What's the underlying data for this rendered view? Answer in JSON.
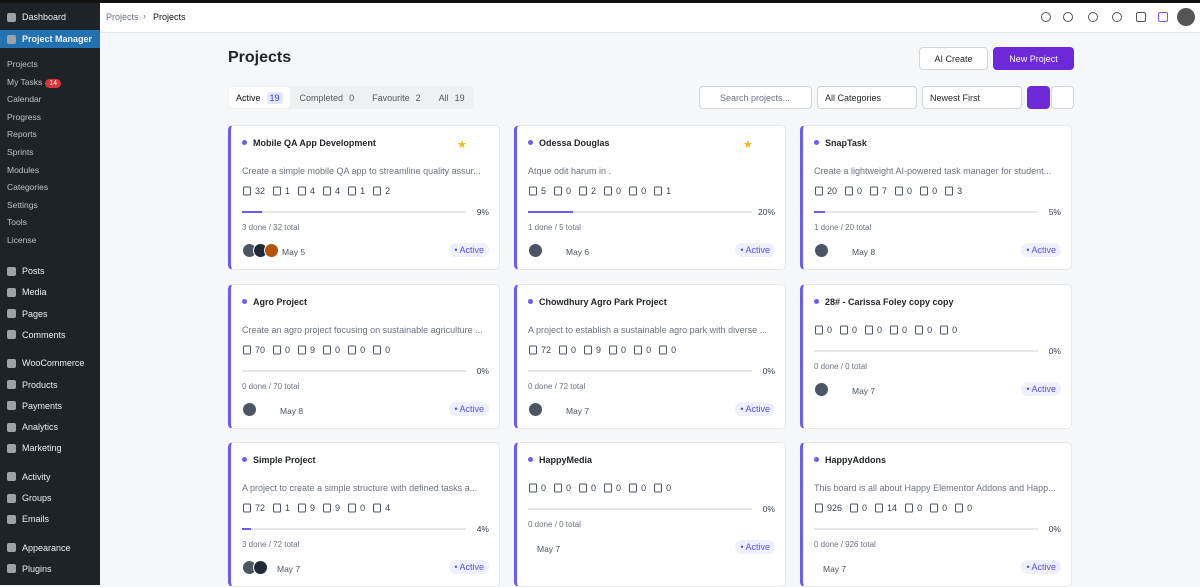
{
  "sidebar": {
    "top": [
      "Dashboard",
      "Project Manager"
    ],
    "submenu": [
      {
        "label": "Projects"
      },
      {
        "label": "My Tasks",
        "badge": "14"
      },
      {
        "label": "Calendar"
      },
      {
        "label": "Progress"
      },
      {
        "label": "Reports"
      },
      {
        "label": "Sprints"
      },
      {
        "label": "Modules"
      },
      {
        "label": "Categories"
      },
      {
        "label": "Settings"
      },
      {
        "label": "Tools"
      },
      {
        "label": "License"
      }
    ],
    "groups": [
      [
        "Posts",
        "Media",
        "Pages",
        "Comments"
      ],
      [
        "WooCommerce",
        "Products",
        "Payments",
        "Analytics",
        "Marketing"
      ],
      [
        "Activity",
        "Groups",
        "Emails"
      ],
      [
        "Appearance",
        "Plugins"
      ]
    ]
  },
  "breadcrumb": [
    "Projects",
    "Projects"
  ],
  "header": {
    "title": "Projects",
    "ai_button": "AI Create",
    "new_button": "New Project"
  },
  "tabs": [
    {
      "label": "Active",
      "count": "19"
    },
    {
      "label": "Completed",
      "count": "0"
    },
    {
      "label": "Favourite",
      "count": "2"
    },
    {
      "label": "All",
      "count": "19"
    }
  ],
  "filters": {
    "search_placeholder": "Search projects...",
    "category": "All Categories",
    "sort": "Newest First"
  },
  "cards": [
    {
      "title": "Mobile QA App Development",
      "starred": true,
      "description": "Create a simple mobile QA app to streamline quality assur...",
      "stats": [
        "32",
        "1",
        "4",
        "4",
        "1",
        "2"
      ],
      "progress": "9%",
      "summary": "3 done / 32 total",
      "date": "May 5",
      "status": "Active"
    },
    {
      "title": "Odessa Douglas",
      "starred": true,
      "description": "Atque odit harum in .",
      "stats": [
        "5",
        "0",
        "2",
        "0",
        "0",
        "1"
      ],
      "progress": "20%",
      "summary": "1 done / 5 total",
      "date": "May 6",
      "status": "Active"
    },
    {
      "title": "SnapTask",
      "starred": false,
      "description": "Create a lightweight AI-powered task manager for student...",
      "stats": [
        "20",
        "0",
        "7",
        "0",
        "0",
        "3"
      ],
      "progress": "5%",
      "summary": "1 done / 20 total",
      "date": "May 8",
      "status": "Active"
    },
    {
      "title": "Agro Project",
      "starred": false,
      "description": "Create an agro project focusing on sustainable agriculture ...",
      "stats": [
        "70",
        "0",
        "9",
        "0",
        "0",
        "0"
      ],
      "progress": "0%",
      "summary": "0 done / 70 total",
      "date": "May 8",
      "status": "Active"
    },
    {
      "title": "Chowdhury Agro Park Project",
      "starred": false,
      "description": "A project to establish a sustainable agro park with diverse ...",
      "stats": [
        "72",
        "0",
        "9",
        "0",
        "0",
        "0"
      ],
      "progress": "0%",
      "summary": "0 done / 72 total",
      "date": "May 7",
      "status": "Active"
    },
    {
      "title": "28# - Carissa Foley copy copy",
      "starred": false,
      "stats": [
        "0",
        "0",
        "0",
        "0",
        "0",
        "0"
      ],
      "progress": "0%",
      "summary": "0 done / 0 total",
      "date": "May 7",
      "status": "Active"
    },
    {
      "title": "Simple Project",
      "starred": false,
      "description": "A project to create a simple structure with defined tasks a...",
      "stats": [
        "72",
        "1",
        "9",
        "9",
        "0",
        "4"
      ],
      "progress": "4%",
      "summary": "3 done / 72 total",
      "date": "May 7",
      "status": "Active"
    },
    {
      "title": "HappyMedia",
      "starred": false,
      "stats": [
        "0",
        "0",
        "0",
        "0",
        "0",
        "0"
      ],
      "progress": "0%",
      "summary": "0 done / 0 total",
      "date": "May 7",
      "status": "Active"
    },
    {
      "title": "HappyAddons",
      "starred": false,
      "description": "This board is all about Happy Elementor Addons and Happ...",
      "stats": [
        "926",
        "0",
        "14",
        "0",
        "0",
        "0"
      ],
      "progress": "0%",
      "summary": "0 done / 926 total",
      "date": "May 7",
      "status": "Active"
    }
  ]
}
